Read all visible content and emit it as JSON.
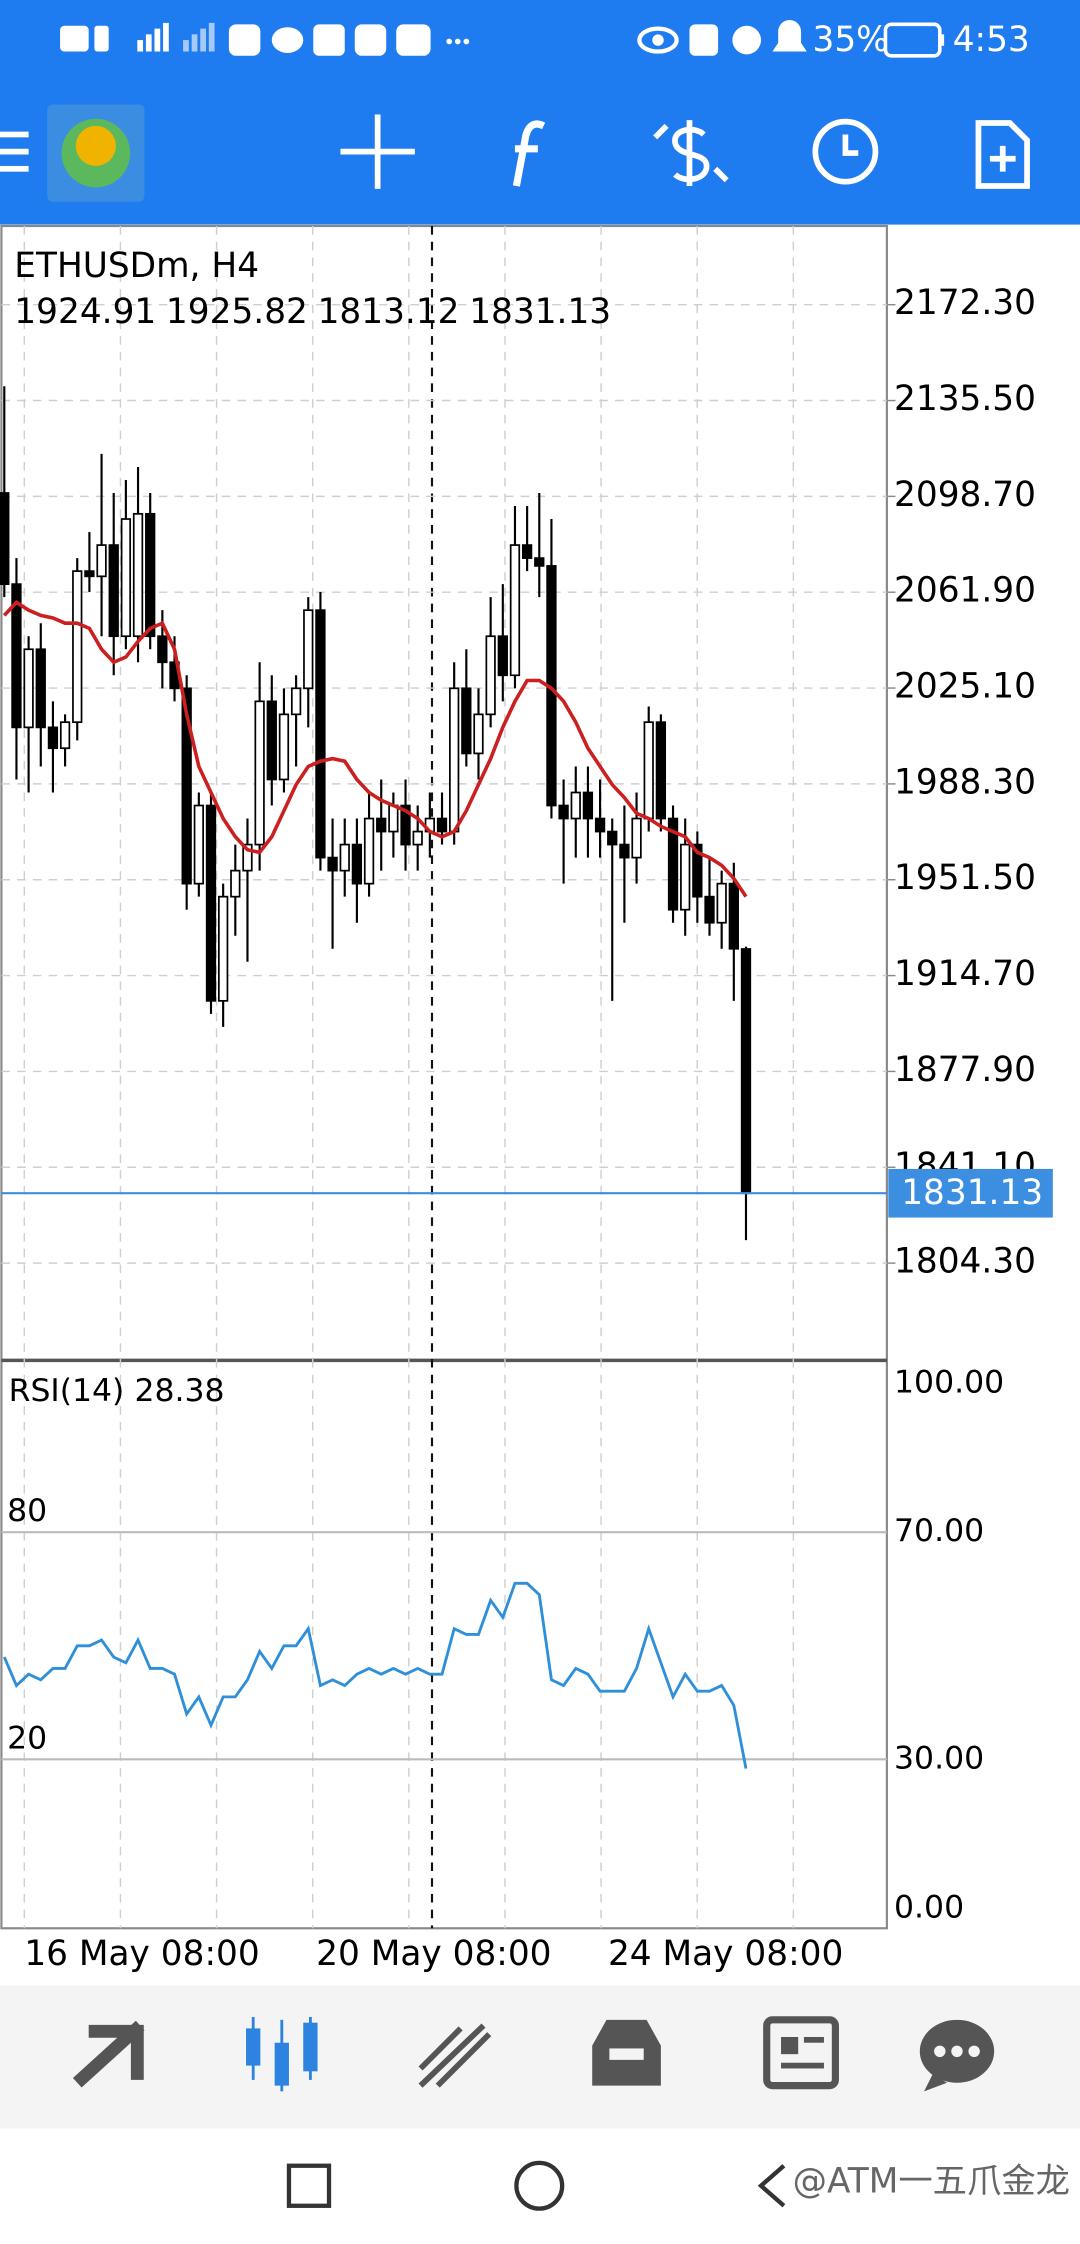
{
  "status": {
    "battery": "35%",
    "time": "4:53"
  },
  "chart_data": {
    "type": "candlestick",
    "title": "ETHUSDm, H4",
    "x": [
      null,
      null,
      "16 May 08:00",
      null,
      null,
      null,
      null,
      null,
      null,
      null,
      null,
      null,
      null,
      null,
      null,
      null,
      null,
      null,
      null,
      null,
      null,
      null,
      null,
      null,
      null,
      null,
      "20 May 08:00",
      null,
      null,
      null,
      null,
      null,
      null,
      null,
      null,
      null,
      null,
      null,
      null,
      null,
      null,
      null,
      null,
      null,
      null,
      null,
      null,
      null,
      null,
      null,
      "24 May 08:00",
      null,
      null,
      null,
      null,
      null,
      null,
      null,
      null,
      null,
      null,
      null
    ],
    "open": [
      2100,
      2065,
      2010,
      2040,
      2010,
      2002,
      2012,
      2070,
      2068,
      2080,
      2045,
      2045,
      2092,
      2045,
      2035,
      2025,
      1950,
      1980,
      1905,
      1945,
      1955,
      1965,
      2020,
      1990,
      2015,
      2025,
      2055,
      1960,
      1955,
      1965,
      1950,
      1975,
      1970,
      1980,
      1965,
      1970,
      1975,
      1970,
      2025,
      2000,
      2015,
      2045,
      2030,
      2080,
      2075,
      2072,
      1980,
      1975,
      1985,
      1975,
      1970,
      1965,
      1960,
      1975,
      2012,
      1975,
      1940,
      1965,
      1945,
      1935,
      1950,
      1924.91
    ],
    "high": [
      2141,
      2075,
      2045,
      2050,
      2020,
      2015,
      2075,
      2085,
      2115,
      2100,
      2105,
      2110,
      2100,
      2055,
      2045,
      2030,
      1985,
      1985,
      1950,
      1965,
      1975,
      2035,
      2030,
      2025,
      2030,
      2060,
      2062,
      1975,
      1975,
      1975,
      1985,
      1990,
      1985,
      1990,
      1980,
      1985,
      1985,
      2035,
      2040,
      2025,
      2060,
      2065,
      2095,
      2095,
      2100,
      2090,
      1990,
      1995,
      1995,
      1990,
      1975,
      1980,
      1985,
      2018,
      2015,
      1980,
      1975,
      1970,
      1960,
      1955,
      1958,
      1925.82
    ],
    "low": [
      2060,
      1990,
      1985,
      1995,
      1985,
      1995,
      2005,
      2062,
      2045,
      2030,
      2040,
      2035,
      2040,
      2025,
      2020,
      1940,
      1945,
      1900,
      1895,
      1930,
      1920,
      1955,
      1980,
      1985,
      1995,
      2010,
      1955,
      1925,
      1945,
      1935,
      1945,
      1955,
      1960,
      1955,
      1955,
      1960,
      1965,
      1965,
      1995,
      1990,
      2010,
      2020,
      2025,
      2070,
      2060,
      1975,
      1950,
      1960,
      1960,
      1960,
      1905,
      1935,
      1950,
      1970,
      1970,
      1935,
      1930,
      1935,
      1930,
      1925,
      1905,
      1813.12
    ],
    "close": [
      2065,
      2010,
      2040,
      2010,
      2002,
      2012,
      2070,
      2068,
      2080,
      2045,
      2090,
      2092,
      2045,
      2035,
      2025,
      1950,
      1980,
      1905,
      1945,
      1955,
      1965,
      2020,
      1990,
      2015,
      2025,
      2055,
      1960,
      1955,
      1965,
      1950,
      1975,
      1970,
      1980,
      1965,
      1970,
      1975,
      1970,
      2025,
      2000,
      2015,
      2045,
      2030,
      2080,
      2075,
      2072,
      1980,
      1975,
      1985,
      1975,
      1970,
      1965,
      1960,
      1975,
      2012,
      1975,
      1940,
      1965,
      1945,
      1935,
      1950,
      1925,
      1831.13
    ],
    "ma_values": [
      2053,
      2058,
      2055,
      2053,
      2052,
      2050,
      2050,
      2048,
      2040,
      2035,
      2037,
      2043,
      2048,
      2050,
      2040,
      2015,
      1995,
      1985,
      1975,
      1968,
      1963,
      1962,
      1968,
      1978,
      1988,
      1995,
      1997,
      1998,
      1997,
      1990,
      1985,
      1982,
      1980,
      1978,
      1975,
      1970,
      1968,
      1970,
      1978,
      1988,
      1998,
      2010,
      2020,
      2028,
      2028,
      2025,
      2020,
      2012,
      2002,
      1995,
      1988,
      1983,
      1977,
      1975,
      1972,
      1970,
      1968,
      1962,
      1960,
      1957,
      1952,
      1945
    ],
    "ma_color": "#cc1f1f",
    "up_color": "#ffffff",
    "down_color": "#000000",
    "last_price_color": "#3b8ee0",
    "ylim": [
      1767.5,
      2202.5
    ],
    "yticks": [
      {
        "value": 1804.3,
        "label": "1804.30"
      },
      {
        "value": 1841.1,
        "label": "1841.10"
      },
      {
        "value": 1877.9,
        "label": "1877.90"
      },
      {
        "value": 1914.7,
        "label": "1914.70"
      },
      {
        "value": 1951.5,
        "label": "1951.50"
      },
      {
        "value": 1988.3,
        "label": "1988.30"
      },
      {
        "value": 2025.1,
        "label": "2025.10"
      },
      {
        "value": 2061.9,
        "label": "2061.90"
      },
      {
        "value": 2098.7,
        "label": "2098.70"
      },
      {
        "value": 2135.5,
        "label": "2135.50"
      },
      {
        "value": 2172.3,
        "label": "2172.30"
      }
    ],
    "grid": true,
    "indicator": {
      "type": "line",
      "title": "RSI(14)",
      "color": "#2f8fd8",
      "values": [
        48,
        43,
        45,
        44,
        46,
        46,
        50,
        50,
        51,
        48,
        47,
        51,
        46,
        46,
        45,
        38,
        41,
        36,
        41,
        41,
        44,
        49,
        46,
        50,
        50,
        53,
        43,
        44,
        43,
        45,
        46,
        45,
        46,
        45,
        46,
        45,
        45,
        53,
        52,
        52,
        58,
        55,
        61,
        61,
        59,
        44,
        43,
        46,
        45,
        42,
        42,
        42,
        46,
        53,
        47,
        41,
        45,
        42,
        42,
        43,
        39.5,
        28.38
      ],
      "ylim": [
        0,
        100
      ],
      "yticks": [
        {
          "value": 0,
          "label": "0.00"
        },
        {
          "value": 30,
          "label": "30.00"
        },
        {
          "value": 70,
          "label": "70.00"
        },
        {
          "value": 100,
          "label": "100.00"
        }
      ],
      "level_labels": [
        "80",
        "20"
      ]
    }
  },
  "watermark": "@ATM一五爪金龙"
}
